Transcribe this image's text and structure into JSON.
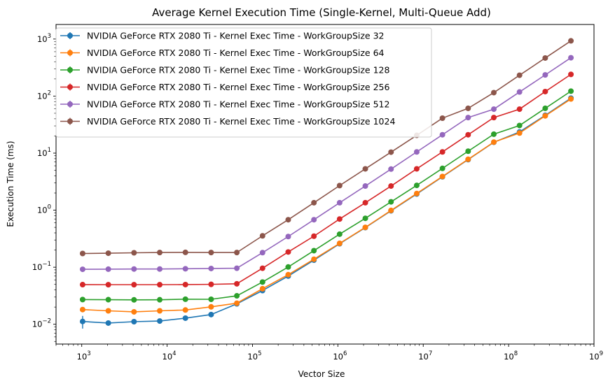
{
  "chart_data": {
    "type": "line",
    "title": "Average Kernel Execution Time (Single-Kernel, Multi-Queue Add)",
    "xlabel": "Vector Size",
    "ylabel": "Execution Time (ms)",
    "xscale": "log",
    "yscale": "log",
    "xlim": [
      500,
      1000000000
    ],
    "ylim": [
      0.0045,
      1800
    ],
    "xticks": [
      {
        "value": 1000,
        "base": "10",
        "exp": "3"
      },
      {
        "value": 10000,
        "base": "10",
        "exp": "4"
      },
      {
        "value": 100000,
        "base": "10",
        "exp": "5"
      },
      {
        "value": 1000000,
        "base": "10",
        "exp": "6"
      },
      {
        "value": 10000000,
        "base": "10",
        "exp": "7"
      },
      {
        "value": 100000000,
        "base": "10",
        "exp": "8"
      },
      {
        "value": 1000000000,
        "base": "10",
        "exp": "9"
      }
    ],
    "yticks": [
      {
        "value": 0.01,
        "base": "10",
        "exp": "−2"
      },
      {
        "value": 0.1,
        "base": "10",
        "exp": "−1"
      },
      {
        "value": 1,
        "base": "10",
        "exp": "0"
      },
      {
        "value": 10,
        "base": "10",
        "exp": "1"
      },
      {
        "value": 100,
        "base": "10",
        "exp": "2"
      },
      {
        "value": 1000,
        "base": "10",
        "exp": "3"
      }
    ],
    "legend_position": "top-left",
    "grid": false,
    "x": [
      1024,
      2048,
      4096,
      8192,
      16384,
      32768,
      65536,
      131072,
      262144,
      524288,
      1048576,
      2097152,
      4194304,
      8388608,
      16777216,
      33554432,
      67108864,
      134217728,
      268435456,
      536870912
    ],
    "series": [
      {
        "name": "NVIDIA GeForce RTX 2080 Ti - Kernel Exec Time - WorkGroupSize 32",
        "color": "#1f77b4",
        "values": [
          0.0112,
          0.0105,
          0.0111,
          0.0114,
          0.0128,
          0.0148,
          0.0228,
          0.039,
          0.07,
          0.133,
          0.258,
          0.495,
          0.975,
          1.92,
          3.85,
          7.7,
          15.5,
          23.5,
          46,
          92
        ],
        "errors": [
          0.0028,
          0.0006,
          0.0008,
          0.0005,
          0.0006,
          0.0005,
          0.0008,
          0.001,
          0.001,
          0.002,
          0.004,
          0.006,
          0.01,
          0.02,
          0.04,
          0.08,
          0.15,
          0.3,
          0.5,
          1
        ]
      },
      {
        "name": "NVIDIA GeForce RTX 2080 Ti - Kernel Exec Time - WorkGroupSize 64",
        "color": "#ff7f0e",
        "values": [
          0.0181,
          0.0172,
          0.0165,
          0.0172,
          0.0178,
          0.0202,
          0.0234,
          0.042,
          0.074,
          0.138,
          0.262,
          0.5,
          0.99,
          1.96,
          3.9,
          7.8,
          15.6,
          22.5,
          45,
          89
        ],
        "errors": [
          0.0006,
          0.0005,
          0.0005,
          0.0005,
          0.0005,
          0.0005,
          0.0006,
          0.001,
          0.001,
          0.002,
          0.004,
          0.006,
          0.01,
          0.02,
          0.04,
          0.08,
          0.15,
          0.3,
          0.5,
          1
        ]
      },
      {
        "name": "NVIDIA GeForce RTX 2080 Ti - Kernel Exec Time - WorkGroupSize 128",
        "color": "#2ca02c",
        "values": [
          0.0271,
          0.027,
          0.0268,
          0.0269,
          0.0275,
          0.0274,
          0.0315,
          0.055,
          0.101,
          0.195,
          0.38,
          0.72,
          1.4,
          2.72,
          5.4,
          10.8,
          21.5,
          30.5,
          61,
          122
        ],
        "errors": [
          0.0004,
          0.0004,
          0.0004,
          0.0004,
          0.0004,
          0.0004,
          0.0005,
          0.001,
          0.002,
          0.003,
          0.005,
          0.01,
          0.02,
          0.03,
          0.06,
          0.1,
          0.2,
          0.3,
          0.6,
          1.2
        ]
      },
      {
        "name": "NVIDIA GeForce RTX 2080 Ti - Kernel Exec Time - WorkGroupSize 256",
        "color": "#d62728",
        "values": [
          0.0495,
          0.0494,
          0.0494,
          0.0494,
          0.0496,
          0.0501,
          0.0512,
          0.096,
          0.185,
          0.35,
          0.7,
          1.35,
          2.65,
          5.3,
          10.5,
          21,
          42,
          59,
          120,
          240
        ],
        "errors": [
          0.0005,
          0.0005,
          0.0005,
          0.0005,
          0.0005,
          0.0005,
          0.0005,
          0.001,
          0.002,
          0.004,
          0.008,
          0.015,
          0.03,
          0.06,
          0.1,
          0.2,
          0.4,
          0.6,
          1.2,
          2.4
        ]
      },
      {
        "name": "NVIDIA GeForce RTX 2080 Ti - Kernel Exec Time - WorkGroupSize 512",
        "color": "#9467bd",
        "values": [
          0.092,
          0.0925,
          0.093,
          0.093,
          0.094,
          0.095,
          0.096,
          0.18,
          0.345,
          0.68,
          1.35,
          2.65,
          5.25,
          10.5,
          21,
          42,
          59,
          118,
          235,
          470
        ],
        "errors": [
          0.001,
          0.001,
          0.001,
          0.001,
          0.001,
          0.001,
          0.001,
          0.002,
          0.004,
          0.007,
          0.015,
          0.03,
          0.06,
          0.1,
          0.2,
          0.4,
          0.6,
          1.2,
          2.4,
          4.7
        ]
      },
      {
        "name": "NVIDIA GeForce RTX 2080 Ti - Kernel Exec Time - WorkGroupSize 1024",
        "color": "#8c564b",
        "values": [
          0.174,
          0.176,
          0.179,
          0.181,
          0.182,
          0.181,
          0.181,
          0.355,
          0.68,
          1.35,
          2.7,
          5.3,
          10.4,
          20.5,
          41,
          61,
          115,
          232,
          465,
          930
        ],
        "errors": [
          0.002,
          0.002,
          0.002,
          0.002,
          0.002,
          0.002,
          0.002,
          0.004,
          0.007,
          0.015,
          0.03,
          0.06,
          0.1,
          0.2,
          0.4,
          0.6,
          1.2,
          2.3,
          4.6,
          9.3
        ]
      }
    ]
  }
}
